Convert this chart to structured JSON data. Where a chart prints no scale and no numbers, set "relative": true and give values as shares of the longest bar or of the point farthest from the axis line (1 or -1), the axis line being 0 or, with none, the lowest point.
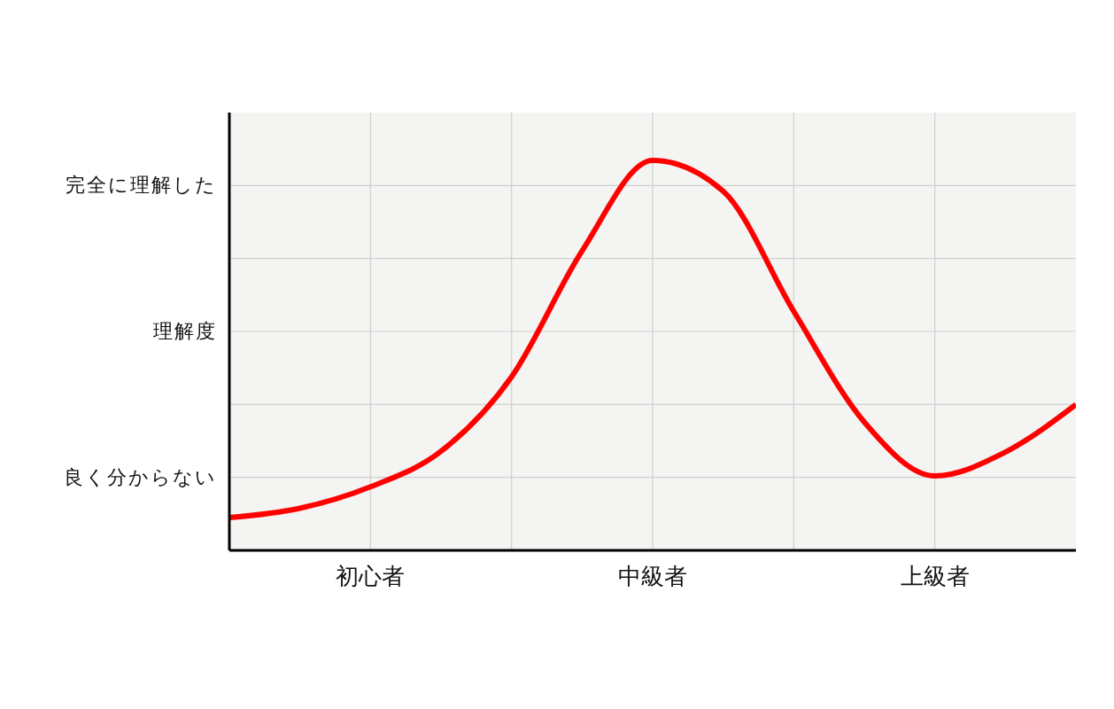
{
  "chart_data": {
    "type": "line",
    "relative": true,
    "categories": [
      null,
      null,
      "初心者",
      null,
      null,
      null,
      "中級者",
      null,
      null,
      null,
      "上級者",
      null,
      null
    ],
    "series": [
      {
        "color": "#ff0000",
        "values": [
          0.084,
          0.108,
          0.163,
          0.254,
          0.445,
          0.768,
          1,
          0.921,
          0.613,
          0.329,
          0.191,
          0.252,
          0.374
        ]
      }
    ],
    "annotations": [
      "良く分からない",
      "理解度",
      "完全に理解した"
    ],
    "grid": true,
    "marker": "none"
  }
}
